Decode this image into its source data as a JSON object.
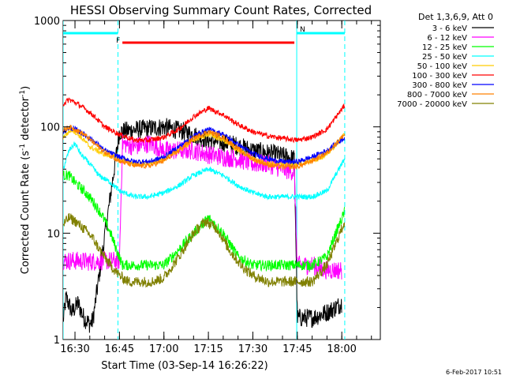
{
  "chart_data": {
    "type": "line",
    "title": "HESSI Observing Summary Count Rates, Corrected",
    "xlabel": "Start Time (03-Sep-14 16:26:22)",
    "ylabel_main": "Corrected Count Rate (s",
    "ylabel_sup1": "-1",
    "ylabel_mid": " detector",
    "ylabel_sup2": "-1",
    "ylabel_end": ")",
    "y_scale": "log",
    "ylim": [
      1,
      1000
    ],
    "y_ticks": [
      {
        "value": 1,
        "label": "1"
      },
      {
        "value": 10,
        "label": "10"
      },
      {
        "value": 100,
        "label": "100"
      },
      {
        "value": 1000,
        "label": "1000"
      }
    ],
    "xlim_minutes": [
      986,
      1093
    ],
    "x_ticks": [
      {
        "minute": 990,
        "label": "16:30"
      },
      {
        "minute": 1005,
        "label": "16:45"
      },
      {
        "minute": 1020,
        "label": "17:00"
      },
      {
        "minute": 1035,
        "label": "17:15"
      },
      {
        "minute": 1050,
        "label": "17:30"
      },
      {
        "minute": 1065,
        "label": "17:45"
      },
      {
        "minute": 1080,
        "label": "18:00"
      }
    ],
    "legend_header": "Det 1,3,6,9, Att 0",
    "legend_position": "right",
    "series": [
      {
        "name": "3 - 6 keV",
        "color": "#000000",
        "values": [
          [
            986,
            1.5
          ],
          [
            987,
            2.5
          ],
          [
            989,
            1.8
          ],
          [
            991,
            2.2
          ],
          [
            993,
            1.6
          ],
          [
            995,
            1.4
          ],
          [
            996,
            1.5
          ],
          [
            1005,
            90
          ],
          [
            1012,
            95
          ],
          [
            1020,
            100
          ],
          [
            1027,
            90
          ],
          [
            1035,
            75
          ],
          [
            1042,
            70
          ],
          [
            1050,
            60
          ],
          [
            1058,
            55
          ],
          [
            1064,
            50
          ],
          [
            1065,
            1.6
          ],
          [
            1070,
            1.6
          ],
          [
            1075,
            1.8
          ],
          [
            1078,
            2.0
          ],
          [
            1080,
            2.2
          ]
        ]
      },
      {
        "name": "6 - 12 keV",
        "color": "#ff00ff",
        "values": [
          [
            986,
            5.5
          ],
          [
            990,
            5.5
          ],
          [
            995,
            5.4
          ],
          [
            1000,
            5.5
          ],
          [
            1005,
            5.5
          ],
          [
            1006,
            70
          ],
          [
            1010,
            65
          ],
          [
            1015,
            70
          ],
          [
            1020,
            60
          ],
          [
            1025,
            60
          ],
          [
            1030,
            60
          ],
          [
            1035,
            55
          ],
          [
            1040,
            52
          ],
          [
            1045,
            50
          ],
          [
            1050,
            45
          ],
          [
            1055,
            45
          ],
          [
            1060,
            40
          ],
          [
            1064,
            38
          ],
          [
            1065,
            5.0
          ],
          [
            1070,
            5.0
          ],
          [
            1075,
            4.5
          ],
          [
            1080,
            4.5
          ]
        ]
      },
      {
        "name": "12 - 25 keV",
        "color": "#00ff00",
        "values": [
          [
            986,
            35
          ],
          [
            988,
            35
          ],
          [
            990,
            30
          ],
          [
            993,
            25
          ],
          [
            996,
            20
          ],
          [
            999,
            15
          ],
          [
            1002,
            10
          ],
          [
            1004,
            7
          ],
          [
            1006,
            5
          ],
          [
            1010,
            5
          ],
          [
            1015,
            5
          ],
          [
            1020,
            5
          ],
          [
            1025,
            7
          ],
          [
            1030,
            10
          ],
          [
            1035,
            14
          ],
          [
            1040,
            10
          ],
          [
            1045,
            6
          ],
          [
            1050,
            5
          ],
          [
            1055,
            5
          ],
          [
            1060,
            5
          ],
          [
            1065,
            5
          ],
          [
            1070,
            5
          ],
          [
            1075,
            6
          ],
          [
            1078,
            10
          ],
          [
            1081,
            16
          ]
        ]
      },
      {
        "name": "25 - 50 keV",
        "color": "#00ffff",
        "values": [
          [
            986,
            40
          ],
          [
            988,
            60
          ],
          [
            990,
            70
          ],
          [
            992,
            55
          ],
          [
            995,
            45
          ],
          [
            998,
            35
          ],
          [
            1002,
            30
          ],
          [
            1005,
            25
          ],
          [
            1010,
            22
          ],
          [
            1015,
            22
          ],
          [
            1020,
            24
          ],
          [
            1025,
            28
          ],
          [
            1030,
            35
          ],
          [
            1035,
            40
          ],
          [
            1040,
            35
          ],
          [
            1045,
            28
          ],
          [
            1050,
            24
          ],
          [
            1055,
            22
          ],
          [
            1060,
            22
          ],
          [
            1065,
            22
          ],
          [
            1070,
            22
          ],
          [
            1075,
            25
          ],
          [
            1080,
            45
          ],
          [
            1081,
            50
          ]
        ]
      },
      {
        "name": "50 - 100 keV",
        "color": "#ffcc00",
        "values": [
          [
            986,
            80
          ],
          [
            989,
            95
          ],
          [
            992,
            80
          ],
          [
            995,
            65
          ],
          [
            1000,
            55
          ],
          [
            1005,
            50
          ],
          [
            1010,
            45
          ],
          [
            1015,
            45
          ],
          [
            1020,
            50
          ],
          [
            1025,
            60
          ],
          [
            1030,
            75
          ],
          [
            1035,
            85
          ],
          [
            1040,
            75
          ],
          [
            1045,
            60
          ],
          [
            1050,
            50
          ],
          [
            1055,
            45
          ],
          [
            1060,
            45
          ],
          [
            1065,
            45
          ],
          [
            1070,
            48
          ],
          [
            1075,
            55
          ],
          [
            1081,
            85
          ]
        ]
      },
      {
        "name": "100 - 300 keV",
        "color": "#ff0000",
        "values": [
          [
            986,
            165
          ],
          [
            988,
            180
          ],
          [
            990,
            170
          ],
          [
            993,
            150
          ],
          [
            996,
            130
          ],
          [
            1000,
            100
          ],
          [
            1005,
            85
          ],
          [
            1010,
            75
          ],
          [
            1015,
            75
          ],
          [
            1020,
            80
          ],
          [
            1025,
            95
          ],
          [
            1030,
            125
          ],
          [
            1035,
            150
          ],
          [
            1040,
            130
          ],
          [
            1045,
            105
          ],
          [
            1050,
            90
          ],
          [
            1055,
            82
          ],
          [
            1060,
            78
          ],
          [
            1065,
            75
          ],
          [
            1070,
            80
          ],
          [
            1075,
            95
          ],
          [
            1081,
            160
          ]
        ]
      },
      {
        "name": "300 - 800 keV",
        "color": "#0000ff",
        "values": [
          [
            986,
            90
          ],
          [
            988,
            98
          ],
          [
            990,
            95
          ],
          [
            993,
            85
          ],
          [
            996,
            75
          ],
          [
            1000,
            60
          ],
          [
            1005,
            52
          ],
          [
            1010,
            47
          ],
          [
            1015,
            47
          ],
          [
            1020,
            52
          ],
          [
            1025,
            65
          ],
          [
            1030,
            82
          ],
          [
            1035,
            95
          ],
          [
            1040,
            85
          ],
          [
            1045,
            68
          ],
          [
            1050,
            56
          ],
          [
            1055,
            50
          ],
          [
            1060,
            47
          ],
          [
            1065,
            47
          ],
          [
            1070,
            52
          ],
          [
            1075,
            60
          ],
          [
            1081,
            80
          ]
        ]
      },
      {
        "name": "800 - 7000 keV",
        "color": "#ff8000",
        "values": [
          [
            986,
            92
          ],
          [
            988,
            100
          ],
          [
            990,
            95
          ],
          [
            993,
            85
          ],
          [
            996,
            72
          ],
          [
            1000,
            58
          ],
          [
            1005,
            48
          ],
          [
            1010,
            43
          ],
          [
            1015,
            43
          ],
          [
            1020,
            48
          ],
          [
            1025,
            60
          ],
          [
            1030,
            78
          ],
          [
            1035,
            90
          ],
          [
            1040,
            80
          ],
          [
            1045,
            62
          ],
          [
            1050,
            50
          ],
          [
            1055,
            44
          ],
          [
            1060,
            42
          ],
          [
            1065,
            42
          ],
          [
            1070,
            48
          ],
          [
            1075,
            57
          ],
          [
            1081,
            85
          ]
        ]
      },
      {
        "name": "7000 - 20000 keV",
        "color": "#808000",
        "values": [
          [
            986,
            12
          ],
          [
            988,
            14
          ],
          [
            990,
            13
          ],
          [
            993,
            11
          ],
          [
            996,
            9
          ],
          [
            999,
            6.5
          ],
          [
            1002,
            5
          ],
          [
            1005,
            4
          ],
          [
            1008,
            3.5
          ],
          [
            1012,
            3.5
          ],
          [
            1016,
            3.5
          ],
          [
            1020,
            3.8
          ],
          [
            1025,
            6
          ],
          [
            1030,
            10
          ],
          [
            1034,
            13
          ],
          [
            1038,
            11
          ],
          [
            1042,
            7
          ],
          [
            1046,
            5
          ],
          [
            1050,
            4
          ],
          [
            1055,
            3.5
          ],
          [
            1060,
            3.5
          ],
          [
            1065,
            3.5
          ],
          [
            1070,
            3.5
          ],
          [
            1075,
            5
          ],
          [
            1078,
            8
          ],
          [
            1081,
            13
          ]
        ]
      }
    ],
    "attenuator_state_bars": [
      {
        "label": "",
        "color": "#00ffff",
        "start_minute": 986,
        "end_minute": 1004.5
      },
      {
        "label": "F",
        "color": "#ff0000",
        "start_minute": 1006,
        "end_minute": 1064
      },
      {
        "label": "N",
        "color": "#00ffff",
        "start_minute": 1064.8,
        "end_minute": 1081
      }
    ],
    "dashed_markers_minutes": [
      1004.5,
      1081
    ],
    "solid_markers_minutes": [
      986,
      1064.8
    ]
  },
  "footer": {
    "date_stamp": "6-Feb-2017 10:51"
  }
}
